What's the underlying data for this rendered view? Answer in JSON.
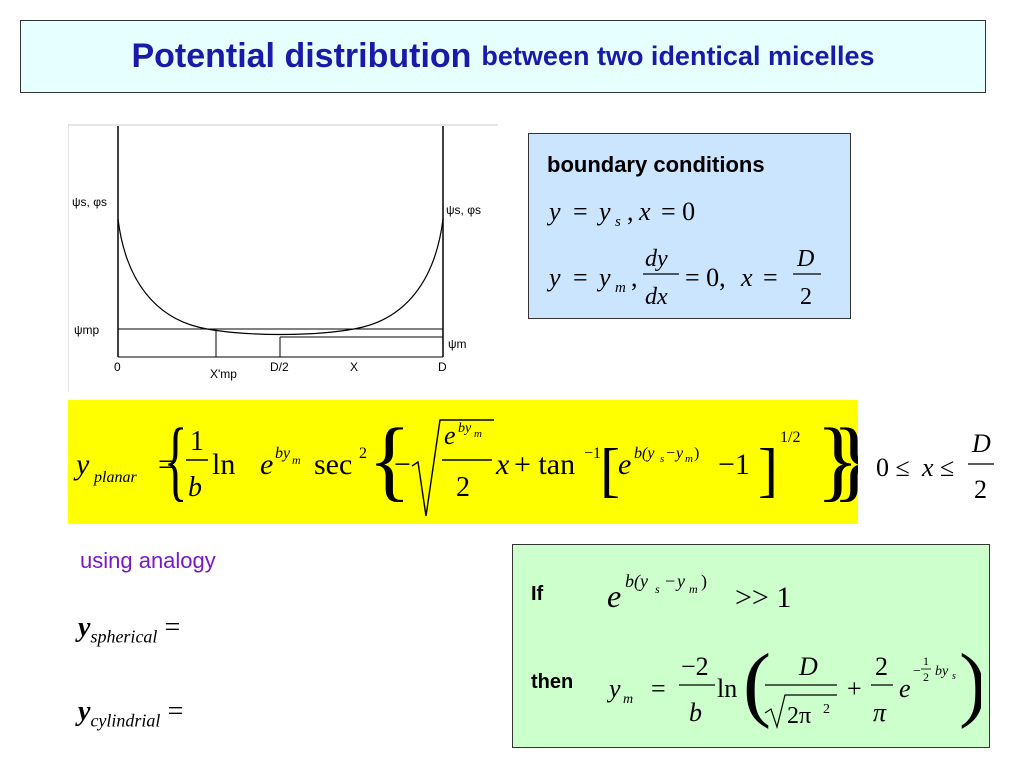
{
  "title": {
    "main": "Potential distribution",
    "sub": "between two identical micelles"
  },
  "plot": {
    "left_axis_label": "ψs, φs",
    "right_axis_label": "ψs, φs",
    "mp_label": "ψmp",
    "m_label": "ψm",
    "x_ticks": [
      "0",
      "X'mp",
      "D/2",
      "X",
      "D"
    ]
  },
  "boundary": {
    "title": "boundary conditions",
    "line1": "y = ys , x = 0",
    "line2": "y = ym , dy/dx = 0, x = D/2"
  },
  "planar": {
    "lhs": "yplanar",
    "range": "0 ≤ x ≤ D/2"
  },
  "analogy": {
    "label": "using analogy",
    "spherical_y": "y",
    "spherical_sub": "spherical",
    "cylindrical_y": "y",
    "cylindrical_sub": "cylindrial",
    "equals": "="
  },
  "condition": {
    "if_label": "If",
    "then_label": "then",
    "if_expr": "e^{b(ys − ym)} >> 1"
  }
}
